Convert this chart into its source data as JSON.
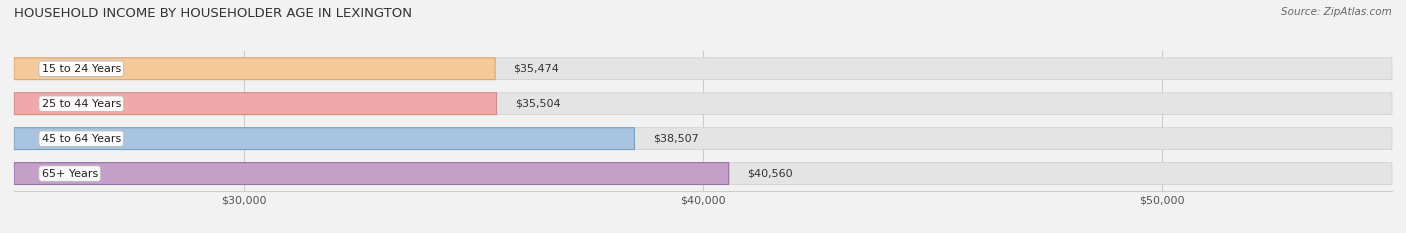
{
  "title": "HOUSEHOLD INCOME BY HOUSEHOLDER AGE IN LEXINGTON",
  "source": "Source: ZipAtlas.com",
  "categories": [
    "15 to 24 Years",
    "25 to 44 Years",
    "45 to 64 Years",
    "65+ Years"
  ],
  "values": [
    35474,
    35504,
    38507,
    40560
  ],
  "bar_colors": [
    "#f5c99a",
    "#f0a8a8",
    "#a8c4e0",
    "#c4a0c8"
  ],
  "bar_edge_colors": [
    "#dba870",
    "#d08888",
    "#78a0c0",
    "#9870a8"
  ],
  "xlim_min": 25000,
  "xlim_max": 55000,
  "xticks": [
    30000,
    40000,
    50000
  ],
  "xtick_labels": [
    "$30,000",
    "$40,000",
    "$50,000"
  ],
  "bar_height": 0.62,
  "figsize": [
    14.06,
    2.33
  ],
  "dpi": 100
}
